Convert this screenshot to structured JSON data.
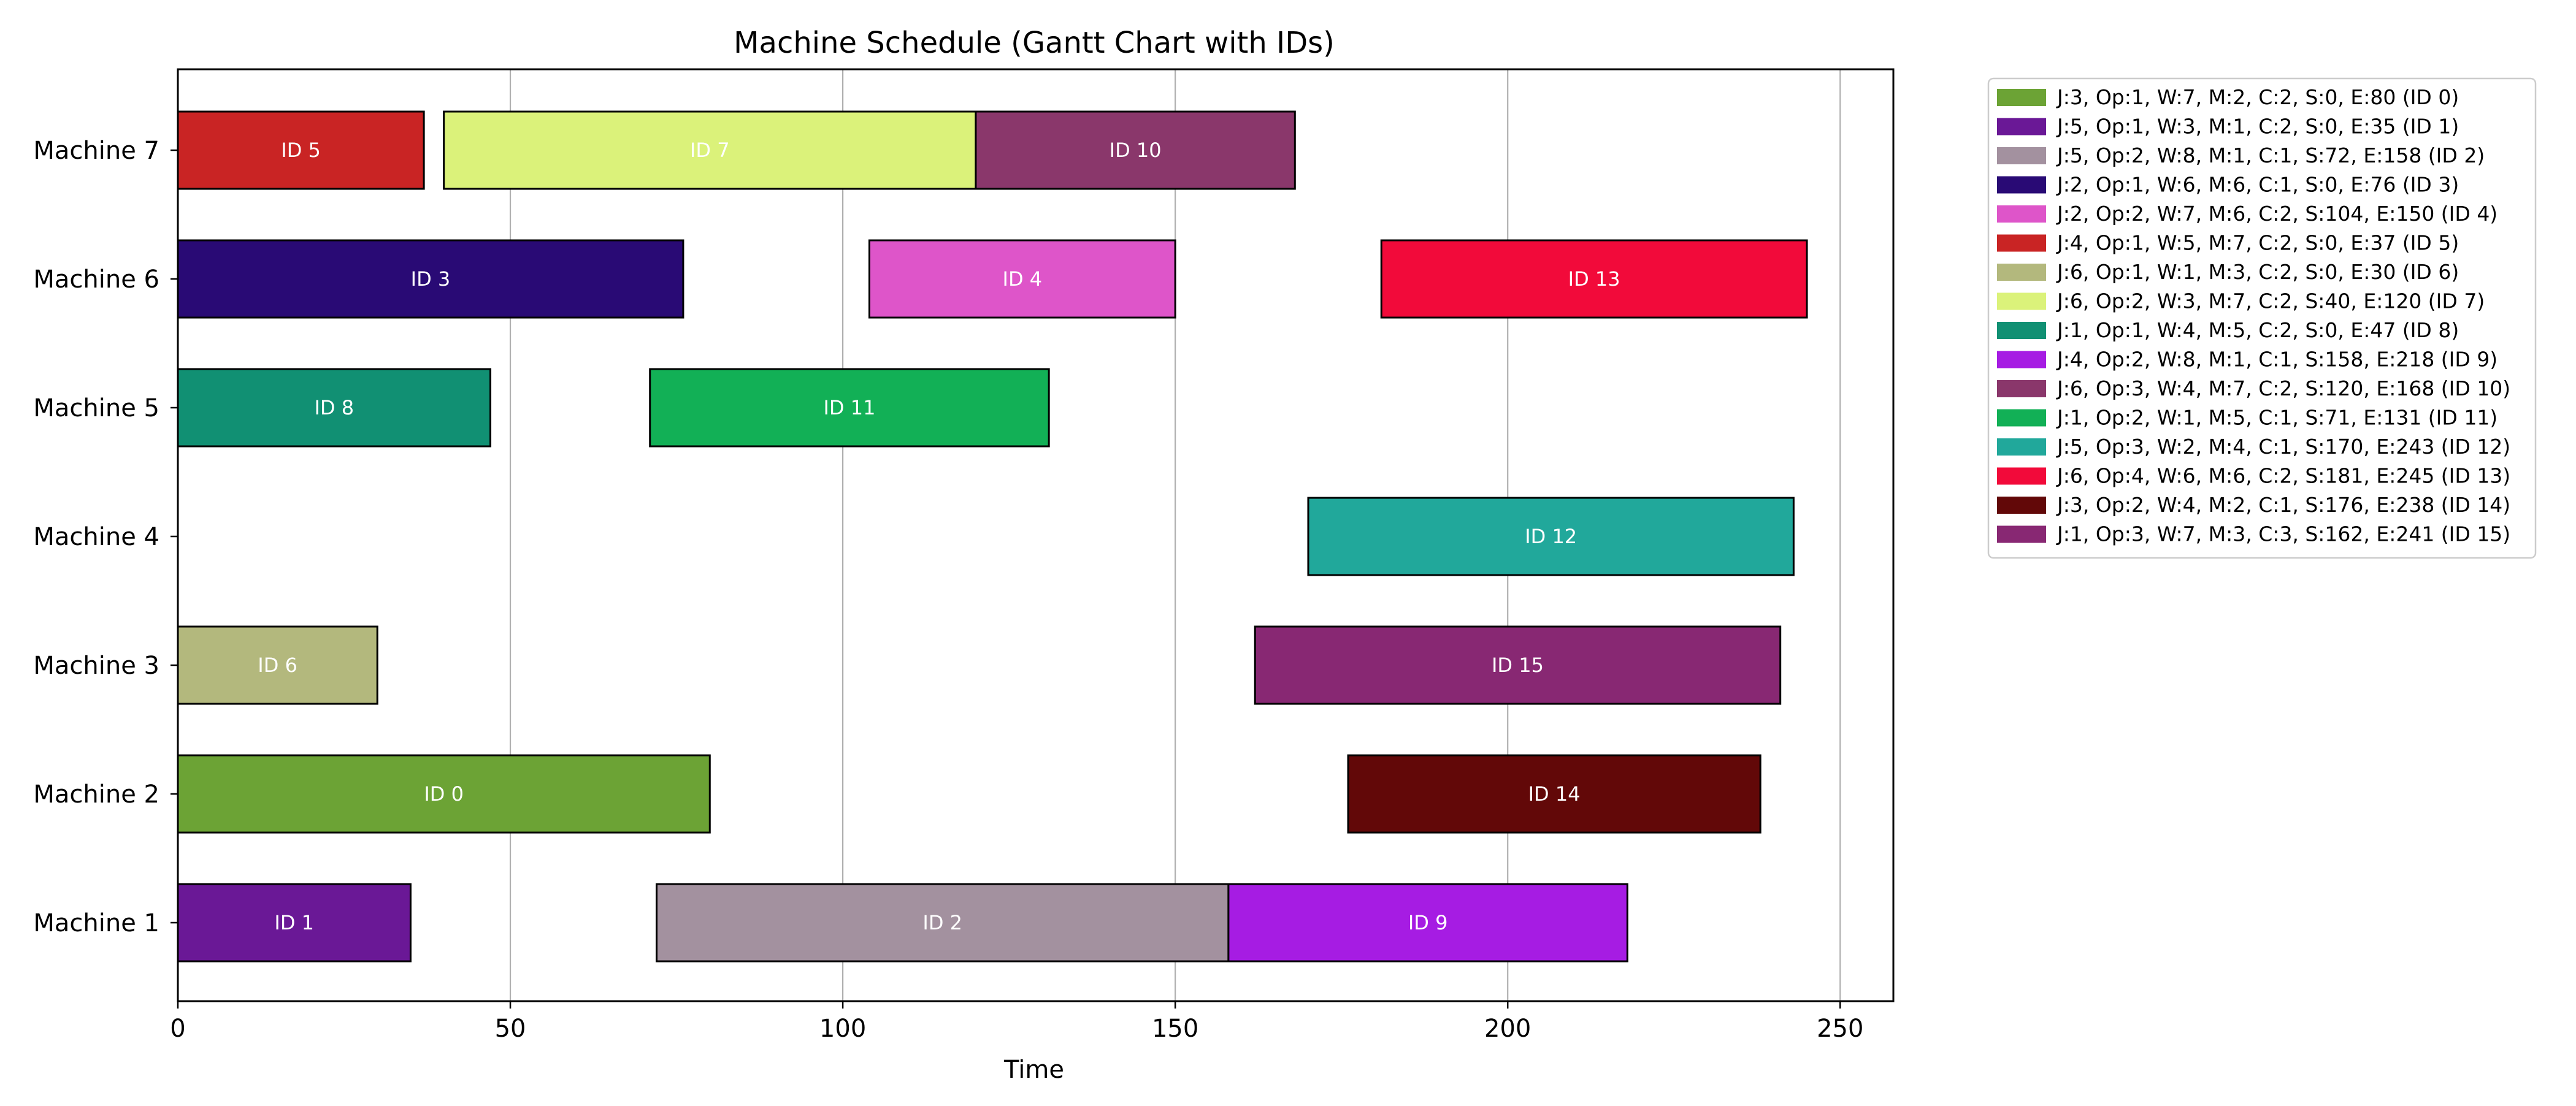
{
  "chart_data": {
    "type": "gantt",
    "title": "Machine Schedule (Gantt Chart with IDs)",
    "xlabel": "Time",
    "ylabel": "",
    "xlim": [
      0,
      258
    ],
    "xticks": [
      0,
      50,
      100,
      150,
      200,
      250
    ],
    "grid": "vertical",
    "legend_position": "outside-right-top",
    "machines": [
      "Machine 1",
      "Machine 2",
      "Machine 3",
      "Machine 4",
      "Machine 5",
      "Machine 6",
      "Machine 7"
    ],
    "tasks": [
      {
        "id": 0,
        "label": "ID 0",
        "machine": 2,
        "start": 0,
        "end": 80,
        "color": "#6ca335",
        "legend": "J:3, Op:1, W:7, M:2, C:2, S:0, E:80 (ID 0)"
      },
      {
        "id": 1,
        "label": "ID 1",
        "machine": 1,
        "start": 0,
        "end": 35,
        "color": "#6a1896",
        "legend": "J:5, Op:1, W:3, M:1, C:2, S:0, E:35 (ID 1)"
      },
      {
        "id": 2,
        "label": "ID 2",
        "machine": 1,
        "start": 72,
        "end": 158,
        "color": "#a3919f",
        "legend": "J:5, Op:2, W:8, M:1, C:1, S:72, E:158 (ID 2)"
      },
      {
        "id": 3,
        "label": "ID 3",
        "machine": 6,
        "start": 0,
        "end": 76,
        "color": "#290a75",
        "legend": "J:2, Op:1, W:6, M:6, C:1, S:0, E:76 (ID 3)"
      },
      {
        "id": 4,
        "label": "ID 4",
        "machine": 6,
        "start": 104,
        "end": 150,
        "color": "#de55c9",
        "legend": "J:2, Op:2, W:7, M:6, C:2, S:104, E:150 (ID 4)"
      },
      {
        "id": 5,
        "label": "ID 5",
        "machine": 7,
        "start": 0,
        "end": 37,
        "color": "#c92424",
        "legend": "J:4, Op:1, W:5, M:7, C:2, S:0, E:37 (ID 5)"
      },
      {
        "id": 6,
        "label": "ID 6",
        "machine": 3,
        "start": 0,
        "end": 30,
        "color": "#b3b87d",
        "legend": "J:6, Op:1, W:1, M:3, C:2, S:0, E:30 (ID 6)"
      },
      {
        "id": 7,
        "label": "ID 7",
        "machine": 7,
        "start": 40,
        "end": 120,
        "color": "#dbf27a",
        "legend": "J:6, Op:2, W:3, M:7, C:2, S:40, E:120 (ID 7)"
      },
      {
        "id": 8,
        "label": "ID 8",
        "machine": 5,
        "start": 0,
        "end": 47,
        "color": "#119073",
        "legend": "J:1, Op:1, W:4, M:5, C:2, S:0, E:47 (ID 8)"
      },
      {
        "id": 9,
        "label": "ID 9",
        "machine": 1,
        "start": 158,
        "end": 218,
        "color": "#a61ce3",
        "legend": "J:4, Op:2, W:8, M:1, C:1, S:158, E:218 (ID 9)"
      },
      {
        "id": 10,
        "label": "ID 10",
        "machine": 7,
        "start": 120,
        "end": 168,
        "color": "#8a376b",
        "legend": "J:6, Op:3, W:4, M:7, C:2, S:120, E:168 (ID 10)"
      },
      {
        "id": 11,
        "label": "ID 11",
        "machine": 5,
        "start": 71,
        "end": 131,
        "color": "#12b056",
        "legend": "J:1, Op:2, W:1, M:5, C:1, S:71, E:131 (ID 11)"
      },
      {
        "id": 12,
        "label": "ID 12",
        "machine": 4,
        "start": 170,
        "end": 243,
        "color": "#21a89b",
        "legend": "J:5, Op:3, W:2, M:4, C:1, S:170, E:243 (ID 12)"
      },
      {
        "id": 13,
        "label": "ID 13",
        "machine": 6,
        "start": 181,
        "end": 245,
        "color": "#f20a3a",
        "legend": "J:6, Op:4, W:6, M:6, C:2, S:181, E:245 (ID 13)"
      },
      {
        "id": 14,
        "label": "ID 14",
        "machine": 2,
        "start": 176,
        "end": 238,
        "color": "#620808",
        "legend": "J:3, Op:2, W:4, M:2, C:1, S:176, E:238 (ID 14)"
      },
      {
        "id": 15,
        "label": "ID 15",
        "machine": 3,
        "start": 162,
        "end": 241,
        "color": "#882873",
        "legend": "J:1, Op:3, W:7, M:3, C:3, S:162, E:241 (ID 15)"
      }
    ]
  }
}
